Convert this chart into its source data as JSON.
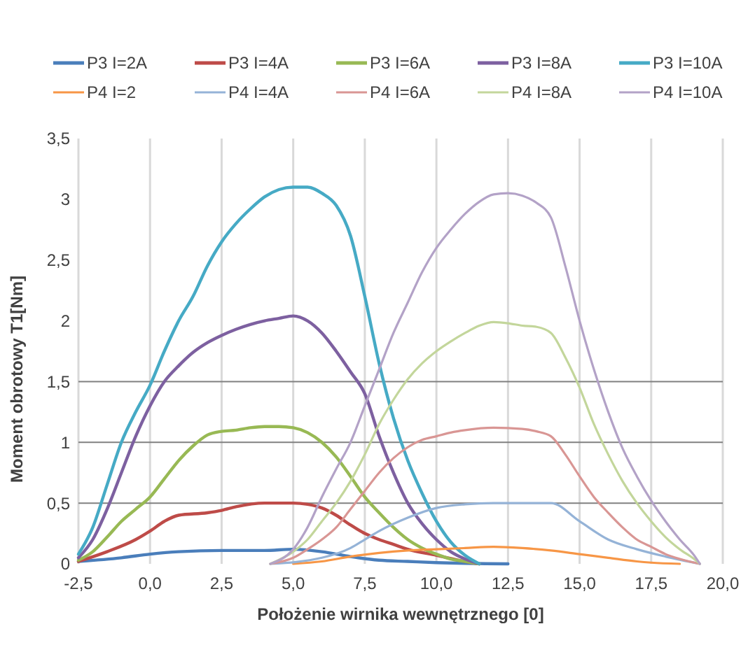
{
  "chart_data": {
    "type": "line",
    "xlabel": "Położenie wirnika wewnętrznego [0]",
    "ylabel": "Moment obrotowy T1[Nm]",
    "xlim": [
      -2.5,
      20
    ],
    "ylim": [
      0,
      3.5
    ],
    "xticks": [
      {
        "value": -2.5,
        "label": "-2,5"
      },
      {
        "value": 0,
        "label": "0,0"
      },
      {
        "value": 2.5,
        "label": "2,5"
      },
      {
        "value": 5,
        "label": "5,0"
      },
      {
        "value": 7.5,
        "label": "7,5"
      },
      {
        "value": 10,
        "label": "10,0"
      },
      {
        "value": 12.5,
        "label": "12,5"
      },
      {
        "value": 15,
        "label": "15,0"
      },
      {
        "value": 17.5,
        "label": "17,5"
      },
      {
        "value": 20,
        "label": "20,0"
      }
    ],
    "yticks": [
      0,
      {
        "value": 0.5,
        "label": "0,5"
      },
      1,
      {
        "value": 1.5,
        "label": "1,5"
      },
      2,
      {
        "value": 2.5,
        "label": "2,5"
      },
      3,
      {
        "value": 3.5,
        "label": "3,5"
      }
    ],
    "grid": "x",
    "legend": "top",
    "marker": "none",
    "line_style": "solid",
    "ref_lines": [
      {
        "axis": "y",
        "value": 0.5,
        "color": "#808080"
      },
      {
        "axis": "y",
        "value": 1,
        "color": "#808080"
      },
      {
        "axis": "y",
        "value": 1.5,
        "color": "#808080"
      }
    ],
    "series": [
      {
        "name": "P3 I=2A",
        "color": "#4a7ebb",
        "x": [
          -2.5,
          -1,
          0,
          1,
          2.5,
          4,
          5,
          6,
          7,
          8,
          9,
          10,
          12.5
        ],
        "values": [
          0.02,
          0.05,
          0.08,
          0.1,
          0.11,
          0.11,
          0.12,
          0.1,
          0.06,
          0.03,
          0.02,
          0.01,
          0
        ]
      },
      {
        "name": "P3 I=4A",
        "color": "#be4b48",
        "x": [
          -2.5,
          -1.5,
          -0.5,
          0,
          0.5,
          1,
          2,
          2.5,
          3,
          4,
          5,
          5.5,
          6,
          6.5,
          7,
          7.5,
          8,
          8.5,
          9,
          10,
          11,
          11.5
        ],
        "values": [
          0.02,
          0.1,
          0.2,
          0.27,
          0.35,
          0.4,
          0.42,
          0.44,
          0.47,
          0.5,
          0.5,
          0.49,
          0.46,
          0.4,
          0.32,
          0.25,
          0.2,
          0.16,
          0.12,
          0.07,
          0.02,
          0
        ]
      },
      {
        "name": "P3 I=6A",
        "color": "#98b954",
        "x": [
          -2.5,
          -2,
          -1.5,
          -1,
          -0.5,
          0,
          0.5,
          1,
          1.5,
          2,
          2.5,
          3,
          3.5,
          4,
          4.5,
          5,
          5.5,
          6,
          6.5,
          7,
          7.5,
          8,
          8.5,
          9,
          9.5,
          10,
          10.5,
          11,
          11.5
        ],
        "values": [
          0.03,
          0.1,
          0.22,
          0.35,
          0.45,
          0.55,
          0.7,
          0.85,
          0.97,
          1.06,
          1.09,
          1.1,
          1.12,
          1.13,
          1.13,
          1.12,
          1.08,
          1.0,
          0.88,
          0.72,
          0.55,
          0.42,
          0.3,
          0.2,
          0.13,
          0.08,
          0.04,
          0.02,
          0
        ]
      },
      {
        "name": "P3 I=8A",
        "color": "#7d60a0",
        "x": [
          -2.5,
          -2,
          -1.5,
          -1,
          -0.5,
          0,
          0.5,
          1,
          1.5,
          2,
          2.5,
          3,
          3.5,
          4,
          4.5,
          5,
          5.5,
          6,
          6.5,
          7,
          7.5,
          8,
          8.5,
          9,
          9.5,
          10,
          10.5,
          11,
          11.5
        ],
        "values": [
          0.05,
          0.2,
          0.45,
          0.75,
          1.05,
          1.3,
          1.5,
          1.63,
          1.74,
          1.82,
          1.88,
          1.93,
          1.97,
          2.0,
          2.02,
          2.04,
          2.0,
          1.9,
          1.75,
          1.58,
          1.4,
          1.05,
          0.75,
          0.5,
          0.33,
          0.2,
          0.1,
          0.04,
          0
        ]
      },
      {
        "name": "P3 I=10A",
        "color": "#46aac5",
        "x": [
          -2.5,
          -2,
          -1.5,
          -1,
          -0.5,
          0,
          0.5,
          1,
          1.5,
          2,
          2.5,
          3,
          3.5,
          4,
          4.5,
          5,
          5.5,
          6,
          6.5,
          7,
          7.5,
          8,
          8.5,
          9,
          9.5,
          10,
          10.5,
          11,
          11.5
        ],
        "values": [
          0.08,
          0.3,
          0.65,
          1.0,
          1.25,
          1.47,
          1.75,
          2.0,
          2.2,
          2.45,
          2.65,
          2.8,
          2.92,
          3.02,
          3.08,
          3.1,
          3.1,
          3.05,
          2.95,
          2.7,
          2.2,
          1.65,
          1.2,
          0.85,
          0.58,
          0.35,
          0.18,
          0.07,
          0
        ]
      },
      {
        "name": "P4 I=2",
        "color": "#f79646",
        "x": [
          5,
          6,
          7,
          8,
          9,
          10,
          11,
          12,
          13,
          14,
          15,
          16,
          17,
          17.5,
          18.5
        ],
        "values": [
          0,
          0.02,
          0.06,
          0.09,
          0.11,
          0.12,
          0.13,
          0.14,
          0.13,
          0.11,
          0.08,
          0.05,
          0.02,
          0.01,
          0
        ]
      },
      {
        "name": "P4 I=4A",
        "color": "#95b3d7",
        "x": [
          4.2,
          6,
          7,
          7.5,
          8,
          9,
          10,
          11,
          12,
          13,
          14,
          15,
          16,
          17,
          18,
          19.2
        ],
        "values": [
          0,
          0.05,
          0.13,
          0.2,
          0.27,
          0.38,
          0.46,
          0.49,
          0.5,
          0.5,
          0.5,
          0.35,
          0.2,
          0.12,
          0.06,
          0
        ]
      },
      {
        "name": "P4 I=6A",
        "color": "#d99694",
        "x": [
          4.2,
          5,
          5.5,
          6,
          6.5,
          7,
          7.5,
          8,
          8.5,
          9,
          9.5,
          10,
          10.5,
          11,
          12,
          13,
          13.5,
          14,
          14.5,
          15,
          15.5,
          16,
          16.5,
          17,
          17.5,
          18,
          18.5,
          19.2
        ],
        "values": [
          0,
          0.05,
          0.12,
          0.2,
          0.3,
          0.45,
          0.6,
          0.75,
          0.87,
          0.96,
          1.02,
          1.05,
          1.08,
          1.1,
          1.12,
          1.11,
          1.09,
          1.05,
          0.9,
          0.72,
          0.55,
          0.42,
          0.3,
          0.2,
          0.14,
          0.08,
          0.04,
          0
        ]
      },
      {
        "name": "P4 I=8A",
        "color": "#c3d69b",
        "x": [
          4.2,
          5,
          5.5,
          6,
          6.5,
          7,
          7.5,
          8,
          8.5,
          9,
          9.5,
          10,
          10.5,
          11,
          11.5,
          12,
          12.5,
          13,
          13.5,
          14,
          14.5,
          15,
          15.5,
          16,
          16.5,
          17,
          17.5,
          18,
          18.5,
          19,
          19.2
        ],
        "values": [
          0,
          0.1,
          0.2,
          0.35,
          0.5,
          0.68,
          0.9,
          1.15,
          1.35,
          1.52,
          1.65,
          1.75,
          1.83,
          1.9,
          1.96,
          1.99,
          1.98,
          1.96,
          1.95,
          1.9,
          1.7,
          1.45,
          1.15,
          0.9,
          0.68,
          0.5,
          0.35,
          0.22,
          0.12,
          0.04,
          0
        ]
      },
      {
        "name": "P4 I=10A",
        "color": "#b3a2c7",
        "x": [
          4.2,
          5,
          5.5,
          6,
          6.5,
          7,
          7.5,
          8,
          8.5,
          9,
          9.5,
          10,
          10.5,
          11,
          11.5,
          12,
          12.5,
          13,
          13.5,
          14,
          14.5,
          15,
          15.5,
          16,
          16.5,
          17,
          17.5,
          18,
          18.5,
          19,
          19.2
        ],
        "values": [
          0,
          0.12,
          0.3,
          0.55,
          0.78,
          1.0,
          1.3,
          1.6,
          1.9,
          2.15,
          2.4,
          2.6,
          2.75,
          2.88,
          2.98,
          3.04,
          3.05,
          3.03,
          2.97,
          2.85,
          2.45,
          2.0,
          1.6,
          1.25,
          0.95,
          0.72,
          0.52,
          0.35,
          0.2,
          0.07,
          0
        ]
      }
    ]
  }
}
